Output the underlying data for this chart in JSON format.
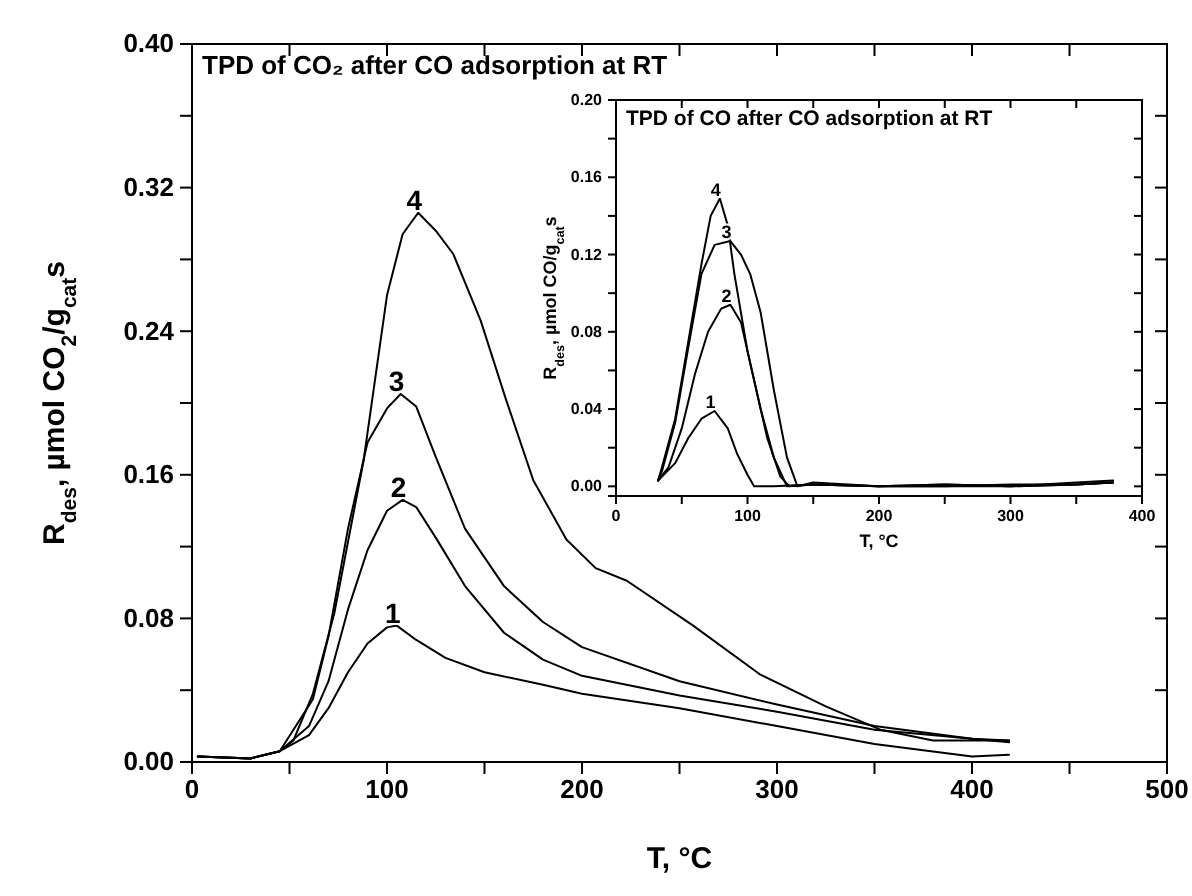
{
  "chart_data": [
    {
      "type": "line",
      "title": "TPD of CO₂ after CO adsorption at RT",
      "xlabel": "T, °C",
      "ylabel": "R$_{des}$, µmol CO$_{2}$/g$_{cat}$s",
      "xlim": [
        0,
        500
      ],
      "ylim": [
        0,
        0.4
      ],
      "xticks": [
        0,
        {
          "value": 50,
          "label": null
        },
        100,
        {
          "value": 150,
          "label": null
        },
        200,
        {
          "value": 250,
          "label": null
        },
        300,
        {
          "value": 350,
          "label": null
        },
        400,
        {
          "value": 450,
          "label": null
        },
        500
      ],
      "yticks": [
        {
          "value": 0,
          "label": "0.00"
        },
        {
          "value": 0.04,
          "label": null
        },
        {
          "value": 0.08,
          "label": "0.08"
        },
        {
          "value": 0.12,
          "label": null
        },
        {
          "value": 0.16,
          "label": "0.16"
        },
        {
          "value": 0.2,
          "label": null
        },
        {
          "value": 0.24,
          "label": "0.24"
        },
        {
          "value": 0.28,
          "label": null
        },
        {
          "value": 0.32,
          "label": "0.32"
        },
        {
          "value": 0.36,
          "label": null
        },
        {
          "value": 0.4,
          "label": "0.40"
        }
      ],
      "line_style": "solid",
      "marker": "none",
      "grid": false,
      "legend": false,
      "series": [
        {
          "name": "1",
          "color": "#000000",
          "x": [
            3,
            30,
            45,
            60,
            70,
            80,
            90,
            100,
            105,
            115,
            130,
            150,
            180,
            200,
            250,
            300,
            350,
            400,
            419
          ],
          "values": [
            0.003,
            0.002,
            0.006,
            0.015,
            0.03,
            0.05,
            0.066,
            0.075,
            0.076,
            0.068,
            0.058,
            0.05,
            0.043,
            0.038,
            0.03,
            0.02,
            0.01,
            0.003,
            0.004
          ]
        },
        {
          "name": "2",
          "color": "#000000",
          "x": [
            3,
            30,
            45,
            60,
            70,
            80,
            90,
            100,
            108,
            115,
            125,
            140,
            160,
            180,
            200,
            250,
            300,
            350,
            400,
            419
          ],
          "values": [
            0.003,
            0.002,
            0.006,
            0.02,
            0.045,
            0.085,
            0.118,
            0.14,
            0.146,
            0.142,
            0.125,
            0.098,
            0.072,
            0.057,
            0.048,
            0.037,
            0.028,
            0.018,
            0.013,
            0.011
          ]
        },
        {
          "name": "3",
          "color": "#000000",
          "x": [
            3,
            30,
            45,
            62,
            70,
            80,
            90,
            100,
            107,
            115,
            125,
            140,
            160,
            180,
            200,
            250,
            300,
            350,
            400,
            419
          ],
          "values": [
            0.003,
            0.002,
            0.006,
            0.035,
            0.07,
            0.13,
            0.178,
            0.197,
            0.205,
            0.198,
            0.17,
            0.13,
            0.098,
            0.078,
            0.064,
            0.045,
            0.032,
            0.02,
            0.013,
            0.012
          ]
        },
        {
          "name": "4",
          "color": "#000000",
          "x": [
            3,
            30,
            45,
            52,
            62,
            73,
            88,
            100,
            108,
            116,
            125,
            134,
            148,
            161,
            175,
            192,
            207,
            223,
            257,
            291,
            325,
            353,
            380,
            419
          ],
          "values": [
            0.003,
            0.002,
            0.006,
            0.012,
            0.038,
            0.083,
            0.168,
            0.26,
            0.294,
            0.306,
            0.296,
            0.283,
            0.246,
            0.202,
            0.157,
            0.124,
            0.108,
            0.101,
            0.076,
            0.049,
            0.031,
            0.018,
            0.012,
            0.012
          ]
        }
      ]
    },
    {
      "type": "line",
      "title": "TPD of CO after CO adsorption at RT",
      "xlabel": "T, °C",
      "ylabel": "R$_{des}$, µmol CO/g$_{cat}$s",
      "xlim": [
        0,
        400
      ],
      "ylim": [
        -0.005,
        0.2
      ],
      "xticks": [
        0,
        {
          "value": 50,
          "label": null
        },
        100,
        {
          "value": 150,
          "label": null
        },
        200,
        {
          "value": 250,
          "label": null
        },
        300,
        {
          "value": 350,
          "label": null
        },
        400
      ],
      "yticks": [
        {
          "value": 0,
          "label": "0.00"
        },
        {
          "value": 0.02,
          "label": null
        },
        {
          "value": 0.04,
          "label": "0.04"
        },
        {
          "value": 0.06,
          "label": null
        },
        {
          "value": 0.08,
          "label": "0.08"
        },
        {
          "value": 0.1,
          "label": null
        },
        {
          "value": 0.12,
          "label": "0.12"
        },
        {
          "value": 0.14,
          "label": null
        },
        {
          "value": 0.16,
          "label": "0.16"
        },
        {
          "value": 0.18,
          "label": null
        },
        {
          "value": 0.2,
          "label": "0.20"
        }
      ],
      "line_style": "solid",
      "marker": "none",
      "grid": false,
      "legend": false,
      "series": [
        {
          "name": "1",
          "color": "#000000",
          "x": [
            32,
            45,
            55,
            65,
            75,
            85,
            92,
            100,
            105,
            120,
            150,
            200,
            250,
            300,
            350,
            378
          ],
          "values": [
            0.003,
            0.012,
            0.025,
            0.035,
            0.039,
            0.03,
            0.017,
            0.006,
            0.0,
            0.0,
            0.001,
            0.0,
            0.0,
            0.0,
            0.001,
            0.002
          ]
        },
        {
          "name": "2",
          "color": "#000000",
          "x": [
            32,
            40,
            50,
            60,
            70,
            80,
            87,
            95,
            105,
            115,
            125,
            132,
            150,
            200,
            250,
            300,
            350,
            378
          ],
          "values": [
            0.003,
            0.01,
            0.03,
            0.058,
            0.08,
            0.092,
            0.094,
            0.085,
            0.055,
            0.025,
            0.005,
            0.0,
            0.001,
            0.0,
            0.001,
            0.0,
            0.001,
            0.002
          ]
        },
        {
          "name": "3",
          "color": "#000000",
          "x": [
            32,
            35,
            45,
            55,
            65,
            75,
            87,
            95,
            102,
            110,
            120,
            130,
            138,
            150,
            200,
            250,
            300,
            350,
            378
          ],
          "values": [
            0.003,
            0.008,
            0.033,
            0.072,
            0.11,
            0.125,
            0.127,
            0.12,
            0.11,
            0.09,
            0.05,
            0.015,
            0.0,
            0.002,
            0.0,
            0.001,
            0.0,
            0.002,
            0.003
          ]
        },
        {
          "name": "4",
          "color": "#000000",
          "x": [
            32,
            35,
            45,
            55,
            65,
            72,
            79,
            85,
            90,
            100,
            110,
            120,
            130,
            150,
            200,
            250,
            300,
            350,
            378
          ],
          "values": [
            0.003,
            0.01,
            0.035,
            0.075,
            0.115,
            0.14,
            0.149,
            0.135,
            0.11,
            0.07,
            0.04,
            0.015,
            0.0,
            0.001,
            0.0,
            0.0,
            0.001,
            0.001,
            0.002
          ]
        }
      ]
    }
  ]
}
